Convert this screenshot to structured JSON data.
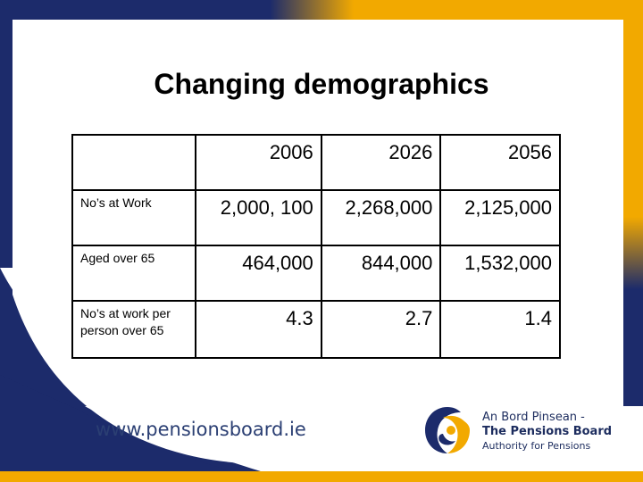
{
  "slide": {
    "title": "Changing demographics",
    "colors": {
      "navy": "#1c2b6b",
      "gold": "#f2a900"
    }
  },
  "table": {
    "columns": [
      "2006",
      "2026",
      "2056"
    ],
    "rows": [
      {
        "label": "No’s at Work",
        "values": [
          "2,000, 100",
          "2,268,000",
          "2,125,000"
        ]
      },
      {
        "label": "Aged over 65",
        "values": [
          "464,000",
          "844,000",
          "1,532,000"
        ]
      },
      {
        "label": "No’s at work per person over 65",
        "values": [
          "4.3",
          "2.7",
          "1.4"
        ]
      }
    ]
  },
  "footer": {
    "website": "www.pensionsboard.ie",
    "brand_line1": "An Bord Pinsean -",
    "brand_line2": "The Pensions Board",
    "brand_line3": "Authority for Pensions",
    "logo_icon": "pensions-board-swirl-logo"
  }
}
